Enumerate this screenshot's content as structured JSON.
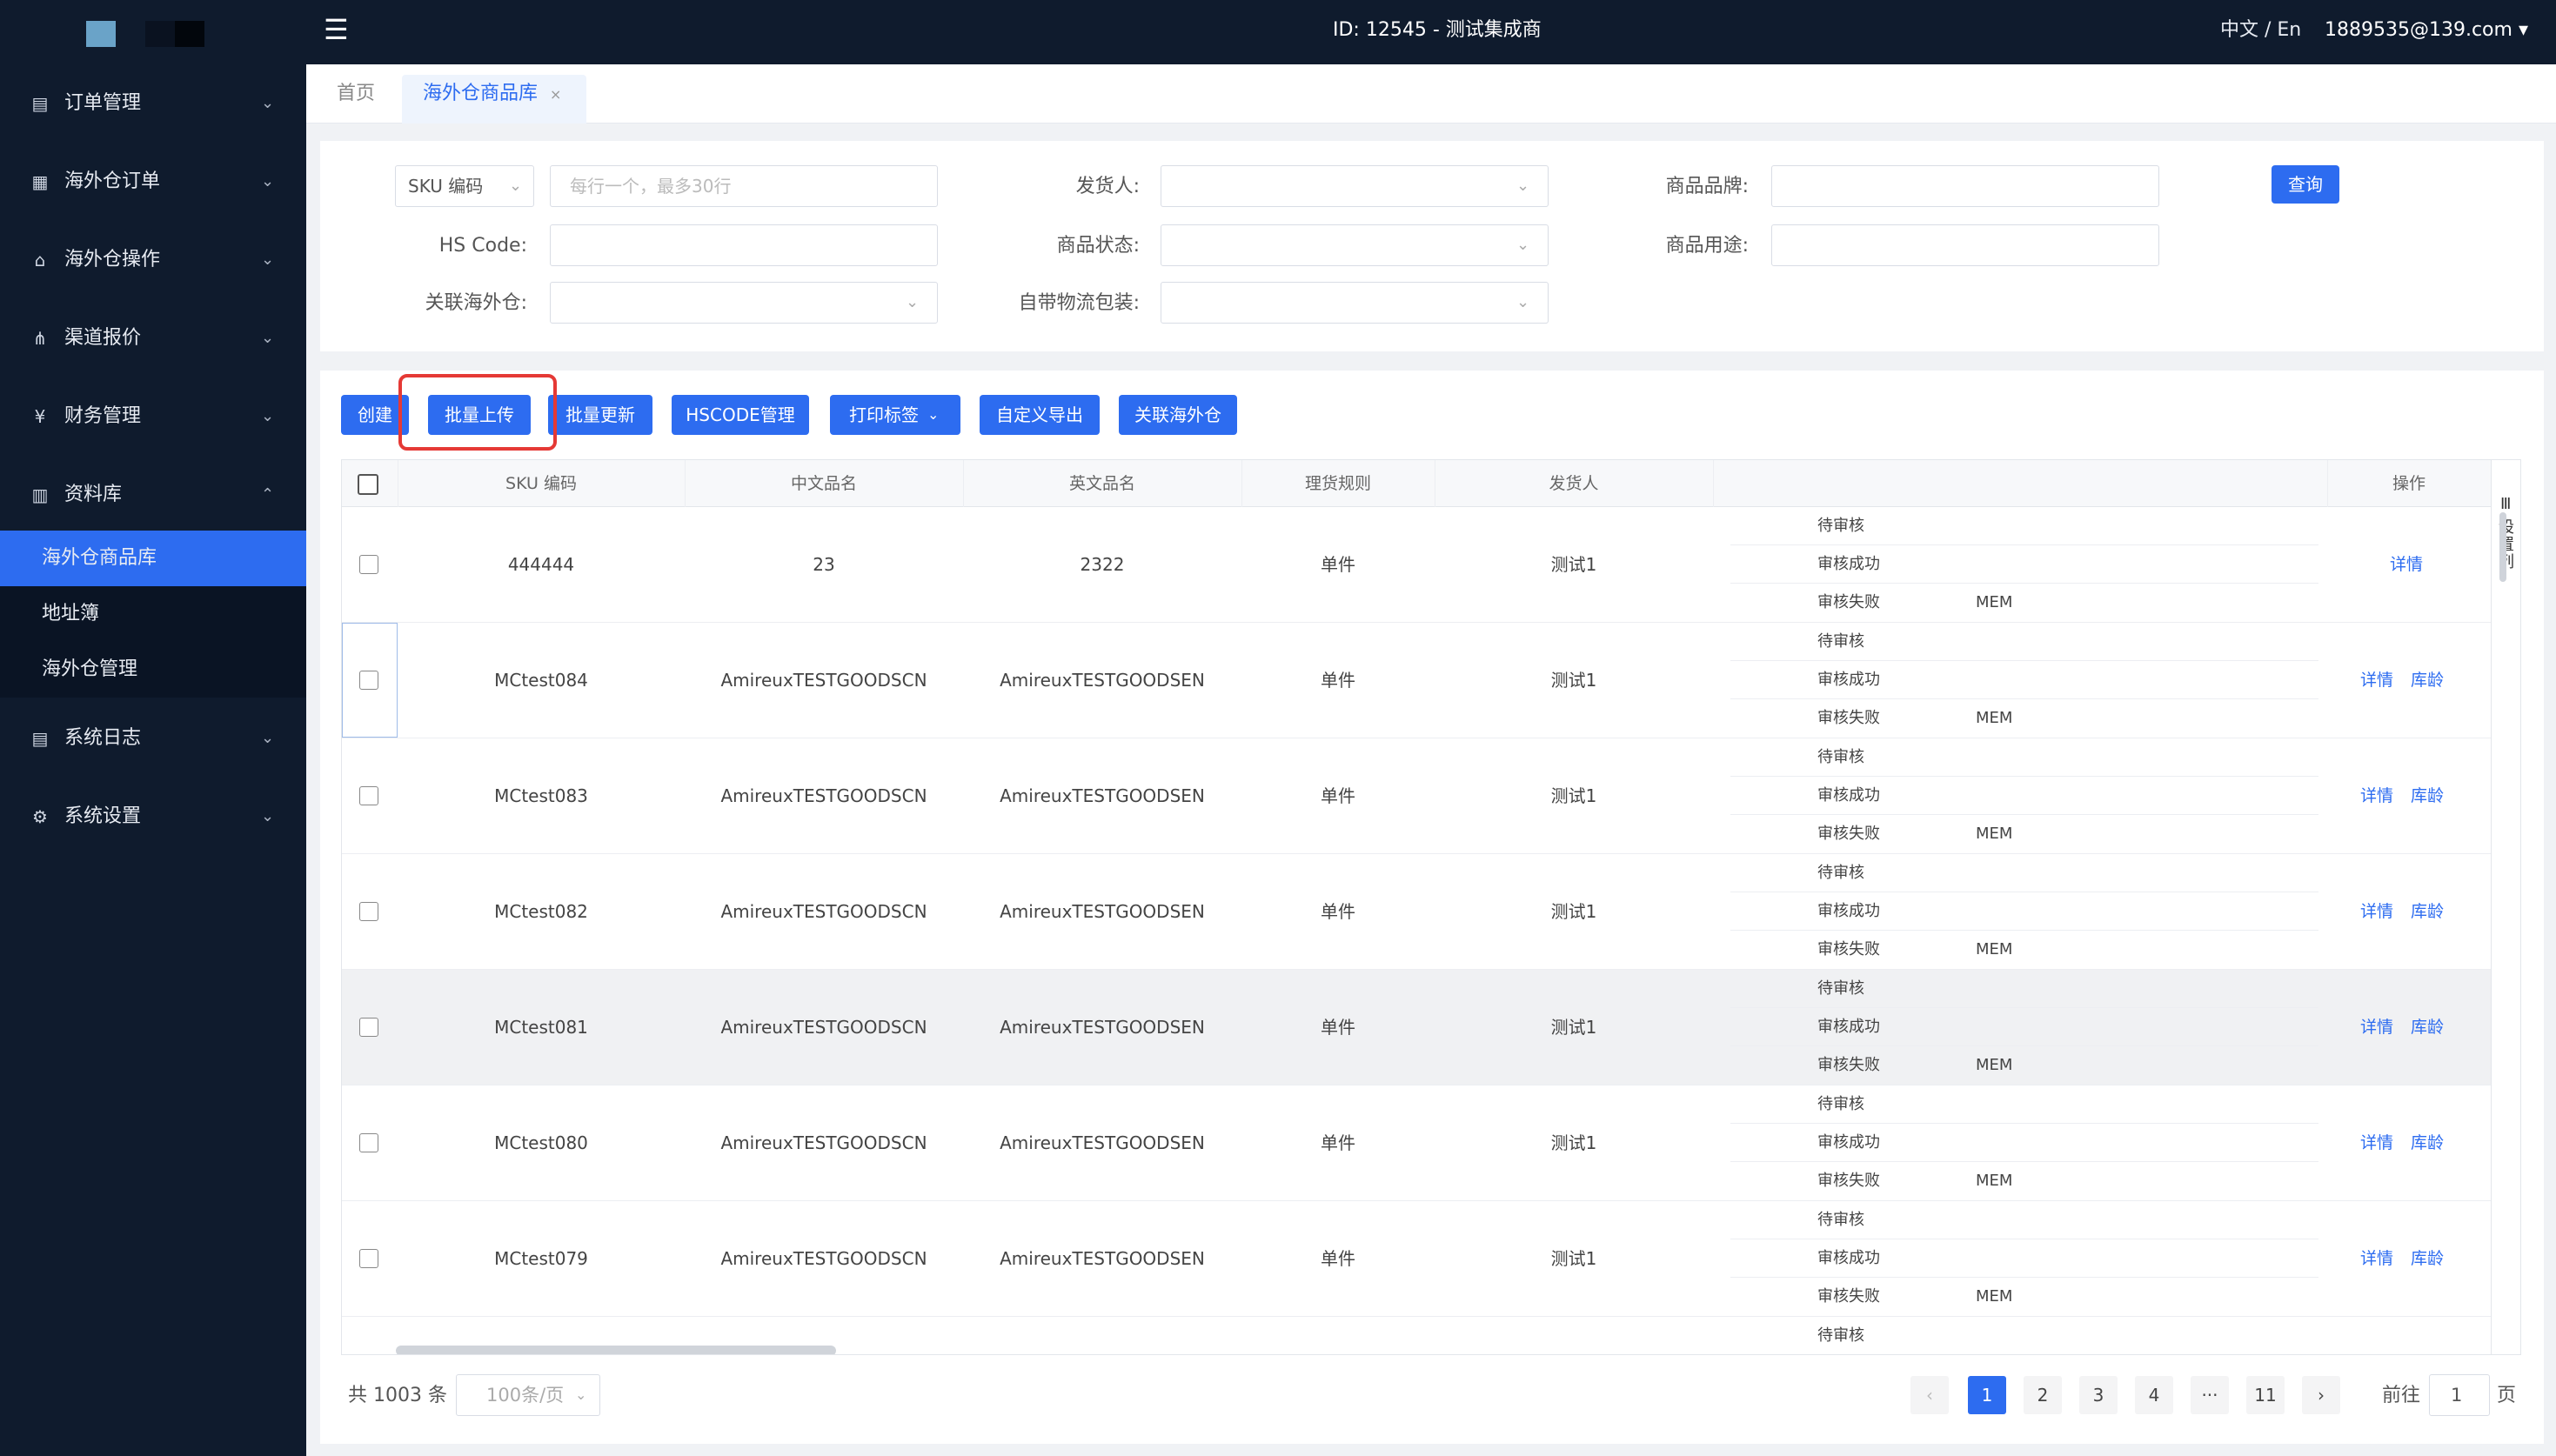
{
  "sidebar": {
    "items": [
      {
        "label": "订单管理",
        "icon": "order-icon",
        "arrow": "⌄"
      },
      {
        "label": "海外仓订单",
        "icon": "overseas-order-icon",
        "arrow": "⌄"
      },
      {
        "label": "海外仓操作",
        "icon": "home-icon",
        "arrow": "⌄"
      },
      {
        "label": "渠道报价",
        "icon": "channel-icon",
        "arrow": "⌄"
      },
      {
        "label": "财务管理",
        "icon": "yen-icon",
        "arrow": "⌄"
      },
      {
        "label": "资料库",
        "icon": "grid-icon",
        "arrow": "⌃"
      },
      {
        "label": "系统日志",
        "icon": "log-icon",
        "arrow": "⌄"
      },
      {
        "label": "系统设置",
        "icon": "gear-icon",
        "arrow": "⌄"
      }
    ],
    "subitems": [
      {
        "label": "海外仓商品库"
      },
      {
        "label": "地址簿"
      },
      {
        "label": "海外仓管理"
      }
    ]
  },
  "header": {
    "title": "ID: 12545 - 测试集成商",
    "lang": "中文 / En",
    "user": "1889535@139.com ▾"
  },
  "tabs": {
    "home": "首页",
    "current": "海外仓商品库",
    "close": "×"
  },
  "filters": {
    "sku_select": "SKU 编码",
    "sku_placeholder": "每行一个，最多30行",
    "shipper_label": "发货人:",
    "brand_label": "商品品牌:",
    "hscode_label": "HS Code:",
    "status_label": "商品状态:",
    "usage_label": "商品用途:",
    "warehouse_label": "关联海外仓:",
    "package_label": "自带物流包装:",
    "query_button": "查询"
  },
  "toolbar": {
    "create": "创建",
    "batch_upload": "批量上传",
    "batch_update": "批量更新",
    "hscode_manage": "HSCODE管理",
    "print_label": "打印标签",
    "custom_export": "自定义导出",
    "link_warehouse": "关联海外仓"
  },
  "table": {
    "headers": [
      "SKU 编码",
      "中文品名",
      "英文品名",
      "理货规则",
      "发货人",
      "操作"
    ],
    "settings_label": "设置列",
    "status_labels": [
      "待审核",
      "审核成功",
      "审核失败"
    ],
    "rows": [
      {
        "sku": "444444",
        "cn": "23",
        "en": "2322",
        "rule": "单件",
        "shipper": "测试1",
        "mem": "MEM",
        "ops": [
          "详情"
        ]
      },
      {
        "sku": "MCtest084",
        "cn": "AmireuxTESTGOODSCN",
        "en": "AmireuxTESTGOODSEN",
        "rule": "单件",
        "shipper": "测试1",
        "mem": "MEM",
        "ops": [
          "详情",
          "库龄"
        ]
      },
      {
        "sku": "MCtest083",
        "cn": "AmireuxTESTGOODSCN",
        "en": "AmireuxTESTGOODSEN",
        "rule": "单件",
        "shipper": "测试1",
        "mem": "MEM",
        "ops": [
          "详情",
          "库龄"
        ]
      },
      {
        "sku": "MCtest082",
        "cn": "AmireuxTESTGOODSCN",
        "en": "AmireuxTESTGOODSEN",
        "rule": "单件",
        "shipper": "测试1",
        "mem": "MEM",
        "ops": [
          "详情",
          "库龄"
        ]
      },
      {
        "sku": "MCtest081",
        "cn": "AmireuxTESTGOODSCN",
        "en": "AmireuxTESTGOODSEN",
        "rule": "单件",
        "shipper": "测试1",
        "mem": "MEM",
        "ops": [
          "详情",
          "库龄"
        ]
      },
      {
        "sku": "MCtest080",
        "cn": "AmireuxTESTGOODSCN",
        "en": "AmireuxTESTGOODSEN",
        "rule": "单件",
        "shipper": "测试1",
        "mem": "MEM",
        "ops": [
          "详情",
          "库龄"
        ]
      },
      {
        "sku": "MCtest079",
        "cn": "AmireuxTESTGOODSCN",
        "en": "AmireuxTESTGOODSEN",
        "rule": "单件",
        "shipper": "测试1",
        "mem": "MEM",
        "ops": [
          "详情",
          "库龄"
        ]
      }
    ],
    "partial_status": "待审核"
  },
  "pager": {
    "total": "共 1003 条",
    "page_size": "100条/页",
    "prev": "‹",
    "pages": [
      "1",
      "2",
      "3",
      "4",
      "···",
      "11"
    ],
    "next": "›",
    "goto": "前往",
    "goto_value": "1",
    "page_suffix": "页"
  },
  "colors": {
    "sidebar": "#0f1b2d",
    "accent": "#2d6cf0",
    "highlight_box": "#e53935"
  }
}
